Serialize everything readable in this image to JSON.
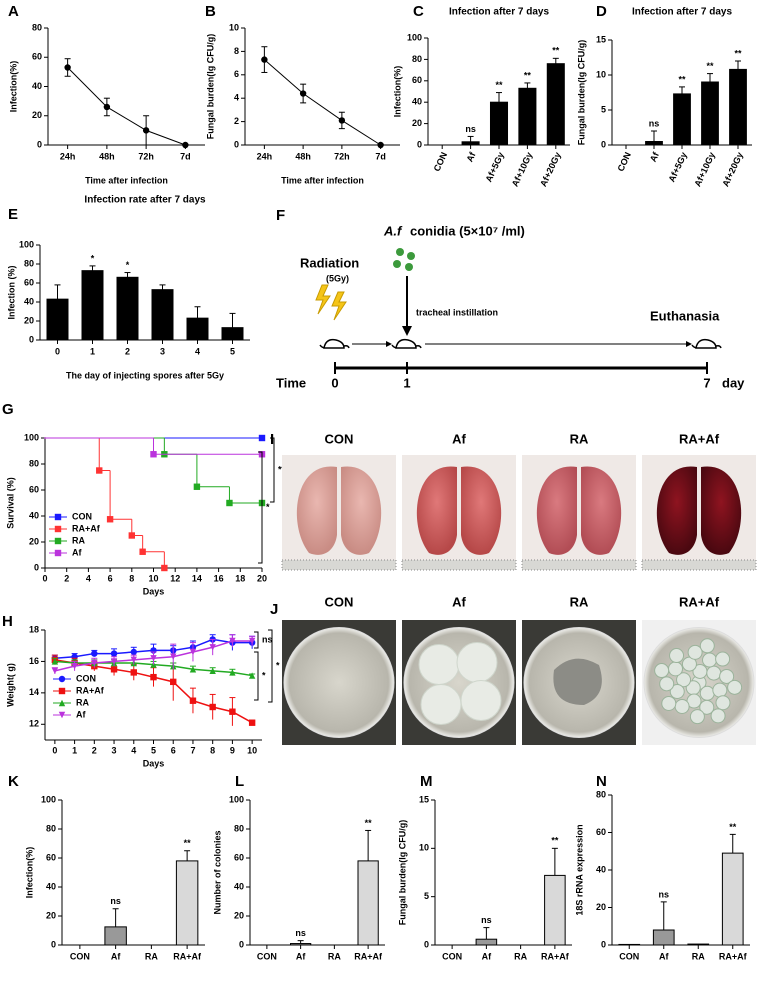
{
  "chart_data": [
    {
      "panel": "A",
      "type": "line",
      "categories": [
        "24h",
        "48h",
        "72h",
        "7d"
      ],
      "values": [
        53,
        26,
        10,
        0
      ],
      "errors": [
        6,
        6,
        10,
        0
      ],
      "color": "#000000",
      "ylim": [
        0,
        80
      ],
      "yticks": [
        0,
        20,
        40,
        60,
        80
      ],
      "ylabel": "Infection(%)",
      "xlabel": "Time after infection"
    },
    {
      "panel": "B",
      "type": "line",
      "categories": [
        "24h",
        "48h",
        "72h",
        "7d"
      ],
      "values": [
        7.3,
        4.4,
        2.1,
        0
      ],
      "errors": [
        1.1,
        0.8,
        0.7,
        0
      ],
      "color": "#000000",
      "ylim": [
        0,
        10
      ],
      "yticks": [
        0,
        2,
        4,
        6,
        8,
        10
      ],
      "ylabel": "Fungal burden(lg CFU/g)",
      "xlabel": "Time after infection"
    },
    {
      "panel": "C",
      "type": "bar",
      "title": "Infection after 7 days",
      "categories": [
        "CON",
        "Af",
        "Af+5Gy",
        "Af+10Gy",
        "Af+20Gy"
      ],
      "values": [
        0,
        3,
        40,
        53,
        76
      ],
      "errors": [
        0,
        5,
        9,
        5,
        5
      ],
      "significance": [
        null,
        "ns",
        "**",
        "**",
        "**"
      ],
      "color": "#000000",
      "ylim": [
        0,
        100
      ],
      "yticks": [
        0,
        20,
        40,
        60,
        80,
        100
      ],
      "ylabel": "Infection(%)"
    },
    {
      "panel": "D",
      "type": "bar",
      "title": "Infection after 7 days",
      "categories": [
        "CON",
        "Af",
        "Af+5Gy",
        "Af+10Gy",
        "Af+20Gy"
      ],
      "values": [
        0,
        0.5,
        7.3,
        9,
        10.8
      ],
      "errors": [
        0,
        1.5,
        1,
        1.2,
        1.2
      ],
      "significance": [
        null,
        "ns",
        "**",
        "**",
        "**"
      ],
      "color": "#000000",
      "ylim": [
        0,
        15
      ],
      "yticks": [
        0,
        5,
        10,
        15
      ],
      "ylabel": "Fungal burden(lg CFU/g)"
    },
    {
      "panel": "E",
      "type": "bar",
      "title": "Infection rate after 7 days",
      "categories": [
        "0",
        "1",
        "2",
        "3",
        "4",
        "5"
      ],
      "values": [
        43,
        73,
        66,
        53,
        23,
        13
      ],
      "errors": [
        15,
        5,
        5,
        5,
        12,
        15
      ],
      "significance": [
        null,
        "*",
        "*",
        null,
        null,
        null
      ],
      "color": "#000000",
      "ylim": [
        0,
        100
      ],
      "yticks": [
        0,
        20,
        40,
        60,
        80,
        100
      ],
      "ylabel": "Infection (%)",
      "xlabel": "The day of injecting spores  after 5Gy"
    },
    {
      "panel": "G",
      "type": "step",
      "xlim": [
        0,
        20
      ],
      "xticks": [
        0,
        2,
        4,
        6,
        8,
        10,
        12,
        14,
        16,
        18,
        20
      ],
      "ylim": [
        0,
        100
      ],
      "yticks": [
        0,
        20,
        40,
        60,
        80,
        100
      ],
      "ylabel": "Survival (%)",
      "xlabel": "Days",
      "significance": [
        "**",
        "*"
      ],
      "series": [
        {
          "name": "CON",
          "color": "#1a1aff",
          "x": [
            0,
            20
          ],
          "values": [
            100,
            100
          ]
        },
        {
          "name": "RA+Af",
          "color": "#ff3333",
          "x": [
            0,
            5,
            6,
            8,
            9,
            11
          ],
          "values": [
            100,
            75,
            37.5,
            25,
            12.5,
            0
          ]
        },
        {
          "name": "RA",
          "color": "#22aa22",
          "x": [
            0,
            11,
            14,
            17,
            20
          ],
          "values": [
            100,
            87.5,
            62.5,
            50,
            50
          ]
        },
        {
          "name": "Af",
          "color": "#bb33dd",
          "x": [
            0,
            10,
            20
          ],
          "values": [
            100,
            87.5,
            87.5
          ]
        }
      ]
    },
    {
      "panel": "H",
      "type": "line",
      "xlim": [
        -0.5,
        10.5
      ],
      "xticks": [
        0,
        1,
        2,
        3,
        4,
        5,
        6,
        7,
        8,
        9,
        10
      ],
      "x": [
        0,
        1,
        2,
        3,
        4,
        5,
        6,
        7,
        8,
        9,
        10
      ],
      "ylim": [
        11,
        18
      ],
      "yticks": [
        12,
        14,
        16,
        18
      ],
      "ylabel": "Weight( g)",
      "xlabel": "Days",
      "significance": [
        "ns",
        "*",
        "*"
      ],
      "series": [
        {
          "name": "CON",
          "color": "#1a1aff",
          "marker": "circle",
          "values": [
            16.2,
            16.3,
            16.5,
            16.5,
            16.6,
            16.7,
            16.7,
            16.9,
            17.4,
            17.2,
            17.2
          ],
          "errors": [
            0.2,
            0.2,
            0.2,
            0.3,
            0.3,
            0.4,
            0.3,
            0.4,
            0.3,
            0.5,
            0.4
          ]
        },
        {
          "name": "RA+Af",
          "color": "#ee1111",
          "marker": "square",
          "values": [
            16.1,
            15.9,
            15.7,
            15.5,
            15.3,
            15.0,
            14.7,
            13.5,
            13.1,
            12.8,
            12.1
          ],
          "errors": [
            0.3,
            0.3,
            0.3,
            0.4,
            0.5,
            0.6,
            1.2,
            0.8,
            0.8,
            0.9,
            0.1
          ]
        },
        {
          "name": "RA",
          "color": "#22aa22",
          "marker": "triangle",
          "values": [
            16.0,
            15.9,
            15.9,
            15.9,
            15.9,
            15.8,
            15.7,
            15.5,
            15.4,
            15.3,
            15.1
          ],
          "errors": [
            0.2,
            0.2,
            0.2,
            0.2,
            0.2,
            0.2,
            0.2,
            0.2,
            0.2,
            0.2,
            0.1
          ]
        },
        {
          "name": "Af",
          "color": "#bb33dd",
          "marker": "triangle-down",
          "values": [
            15.4,
            15.7,
            15.9,
            16.0,
            16.1,
            16.2,
            16.3,
            16.6,
            16.9,
            17.3,
            17.3
          ],
          "errors": [
            0.2,
            0.3,
            0.3,
            0.3,
            0.3,
            0.4,
            0.8,
            0.6,
            0.5,
            0.4,
            0.3
          ]
        }
      ]
    },
    {
      "panel": "K",
      "type": "bar",
      "categories": [
        "CON",
        "Af",
        "RA",
        "RA+Af"
      ],
      "values": [
        0,
        12.5,
        0,
        58
      ],
      "errors": [
        0,
        12.5,
        0,
        7
      ],
      "significance": [
        null,
        "ns",
        null,
        "**"
      ],
      "colors": [
        "#ffffff",
        "#999999",
        "#ffffff",
        "#d9d9d9"
      ],
      "ylim": [
        0,
        100
      ],
      "yticks": [
        0,
        20,
        40,
        60,
        80,
        100
      ],
      "ylabel": "Infection(%)"
    },
    {
      "panel": "L",
      "type": "bar",
      "categories": [
        "CON",
        "Af",
        "RA",
        "RA+Af"
      ],
      "values": [
        0,
        1,
        0,
        58
      ],
      "errors": [
        0,
        2,
        0,
        21
      ],
      "significance": [
        null,
        "ns",
        null,
        "**"
      ],
      "colors": [
        "#ffffff",
        "#999999",
        "#ffffff",
        "#d9d9d9"
      ],
      "ylim": [
        0,
        100
      ],
      "yticks": [
        0,
        20,
        40,
        60,
        80,
        100
      ],
      "ylabel": "Number of colonies"
    },
    {
      "panel": "M",
      "type": "bar",
      "categories": [
        "CON",
        "Af",
        "RA",
        "RA+Af"
      ],
      "values": [
        0,
        0.6,
        0,
        7.2
      ],
      "errors": [
        0,
        1.2,
        0,
        2.8
      ],
      "significance": [
        null,
        "ns",
        null,
        "**"
      ],
      "colors": [
        "#ffffff",
        "#999999",
        "#ffffff",
        "#d9d9d9"
      ],
      "ylim": [
        0,
        15
      ],
      "yticks": [
        0,
        5,
        10,
        15
      ],
      "ylabel": "Fungal burden(lg CFU/g)"
    },
    {
      "panel": "N",
      "type": "bar",
      "categories": [
        "CON",
        "Af",
        "RA",
        "RA+Af"
      ],
      "values": [
        0.3,
        8,
        0.5,
        49
      ],
      "errors": [
        0,
        15,
        0,
        10
      ],
      "significance": [
        null,
        "ns",
        null,
        "**"
      ],
      "colors": [
        "#ffffff",
        "#999999",
        "#ffffff",
        "#d9d9d9"
      ],
      "ylim": [
        0,
        80
      ],
      "yticks": [
        0,
        20,
        40,
        60,
        80
      ],
      "ylabel": "18S rRNA expression"
    }
  ],
  "timeline": {
    "panel": "F",
    "radiation": "Radiation",
    "dose": "(5Gy)",
    "agent": "A.f",
    "conidia": "conidia (5×10⁷ /ml)",
    "instillation": "tracheal instillation",
    "end": "Euthanasia",
    "time": "Time",
    "days": [
      "0",
      "1",
      "7"
    ],
    "unit": "day"
  },
  "photos": [
    {
      "panel": "I",
      "labels": [
        "CON",
        "Af",
        "RA",
        "RA+Af"
      ]
    },
    {
      "panel": "J",
      "labels": [
        "CON",
        "Af",
        "RA",
        "RA+Af"
      ]
    }
  ]
}
